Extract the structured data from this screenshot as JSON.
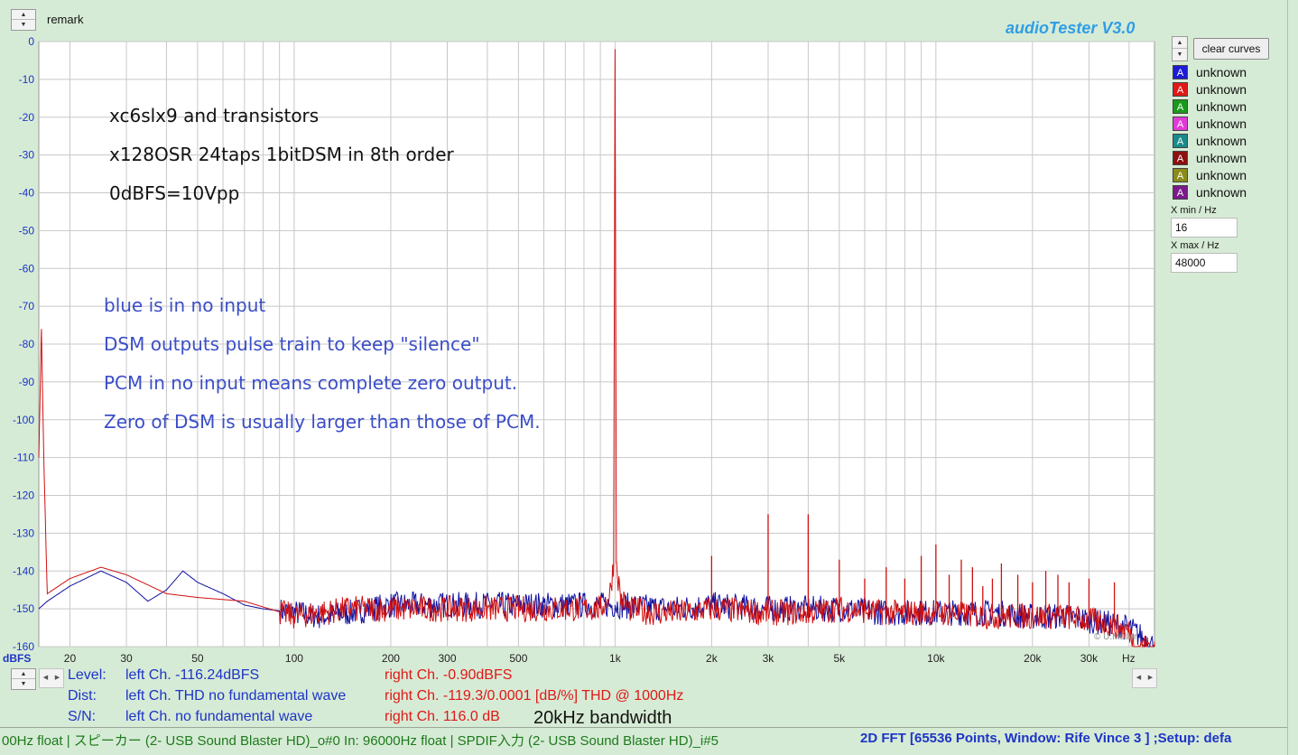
{
  "app": {
    "title": "audioTester  V3.0",
    "remark_label": "remark",
    "copyright": "© U.Müller"
  },
  "controls": {
    "clear_curves": "clear curves",
    "legend": [
      {
        "label": "A",
        "name": "unknown",
        "color": "#1b1bd6"
      },
      {
        "label": "A",
        "name": "unknown",
        "color": "#e01818"
      },
      {
        "label": "A",
        "name": "unknown",
        "color": "#1a9a1a"
      },
      {
        "label": "A",
        "name": "unknown",
        "color": "#e23ad9"
      },
      {
        "label": "A",
        "name": "unknown",
        "color": "#1b8a8a"
      },
      {
        "label": "A",
        "name": "unknown",
        "color": "#8b1010"
      },
      {
        "label": "A",
        "name": "unknown",
        "color": "#8b8b1a"
      },
      {
        "label": "A",
        "name": "unknown",
        "color": "#7b1a8b"
      }
    ],
    "xmin_label": "X min / Hz",
    "xmin_value": "16",
    "xmax_label": "X max / Hz",
    "xmax_value": "48000"
  },
  "stats": {
    "level_label": "Level:",
    "level_left": "left Ch. -116.24dBFS",
    "level_right": "right Ch. -0.90dBFS",
    "dist_label": "Dist:",
    "dist_left": "left Ch. THD no fundamental wave",
    "dist_right": "right Ch. -119.3/0.0001 [dB/%] THD @ 1000Hz",
    "sn_label": "S/N:",
    "sn_left": "left Ch.  no fundamental wave",
    "sn_right": "right Ch. 116.0 dB",
    "bandwidth": "20kHz bandwidth"
  },
  "statusbar": {
    "left": "00Hz float  | スピーカー (2- USB Sound Blaster HD)_o#0  In: 96000Hz float  | SPDIF入力 (2- USB Sound Blaster HD)_i#5",
    "right": "2D FFT [65536 Points, Window: Rife Vince 3 ]  ;Setup:  defa"
  },
  "chart_data": {
    "type": "line",
    "title": "",
    "xlabel": "Hz",
    "ylabel": "dBFS",
    "xscale": "log",
    "xlim": [
      16,
      48000
    ],
    "ylim": [
      -160,
      0
    ],
    "grid": true,
    "y_ticks": [
      "0",
      "-10",
      "-20",
      "-30",
      "-40",
      "-50",
      "-60",
      "-70",
      "-80",
      "-90",
      "-100",
      "-110",
      "-120",
      "-130",
      "-140",
      "-150",
      "-160"
    ],
    "x_ticks": [
      {
        "value": 20,
        "label": "20"
      },
      {
        "value": 30,
        "label": "30"
      },
      {
        "value": 50,
        "label": "50"
      },
      {
        "value": 100,
        "label": "100"
      },
      {
        "value": 200,
        "label": "200"
      },
      {
        "value": 300,
        "label": "300"
      },
      {
        "value": 500,
        "label": "500"
      },
      {
        "value": 1000,
        "label": "1k"
      },
      {
        "value": 2000,
        "label": "2k"
      },
      {
        "value": 3000,
        "label": "3k"
      },
      {
        "value": 5000,
        "label": "5k"
      },
      {
        "value": 10000,
        "label": "10k"
      },
      {
        "value": 20000,
        "label": "20k"
      },
      {
        "value": 30000,
        "label": "30k"
      }
    ],
    "annotations_black": [
      "xc6slx9 and transistors",
      "x128OSR 24taps 1bitDSM in 8th order",
      "0dBFS=10Vpp"
    ],
    "annotations_blue": [
      "blue is in no input",
      "DSM outputs pulse train to keep \"silence\"",
      "PCM in no input means complete zero output.",
      "Zero of DSM is usually larger than those of PCM."
    ],
    "series": [
      {
        "color": "#1010a0",
        "x": [
          16,
          17,
          20,
          25,
          30,
          35,
          40,
          45,
          50,
          60,
          70,
          80,
          100,
          120,
          150,
          200,
          300,
          500,
          700,
          1000,
          1500,
          2000,
          3000,
          5000,
          7000,
          10000,
          15000,
          20000,
          25000,
          30000,
          35000,
          40000,
          48000
        ],
        "y": [
          -150,
          -148,
          -144,
          -140,
          -143,
          -148,
          -145,
          -140,
          -143,
          -146,
          -149,
          -150,
          -151,
          -152,
          -151,
          -149,
          -149,
          -149,
          -149,
          -149,
          -150,
          -149,
          -150,
          -150,
          -151,
          -151,
          -151,
          -152,
          -152,
          -153,
          -154,
          -155,
          -160
        ]
      },
      {
        "color": "#d01010",
        "x": [
          16,
          16.3,
          16.6,
          17,
          20,
          25,
          30,
          40,
          50,
          70,
          100,
          150,
          200,
          300,
          500,
          700,
          900,
          960,
          990,
          1000,
          1010,
          1040,
          1100,
          1300,
          1700,
          2000,
          3000,
          4000,
          5000,
          7000,
          10000,
          15000,
          20000,
          25000,
          30000,
          35000,
          40000,
          42000,
          48000
        ],
        "y": [
          -110,
          -76,
          -112,
          -146,
          -142,
          -139,
          -141,
          -146,
          -147,
          -148,
          -152,
          -150,
          -150,
          -150,
          -150,
          -150,
          -150,
          -147,
          -138,
          -2,
          -138,
          -147,
          -150,
          -151,
          -151,
          -150,
          -151,
          -151,
          -150,
          -151,
          -151,
          -152,
          -152,
          -152,
          -153,
          -154,
          -156,
          -160,
          -160
        ]
      }
    ],
    "spikes": [
      {
        "x": 2000,
        "y": -136
      },
      {
        "x": 3000,
        "y": -125
      },
      {
        "x": 4000,
        "y": -125
      },
      {
        "x": 5000,
        "y": -137
      },
      {
        "x": 6000,
        "y": -142
      },
      {
        "x": 7000,
        "y": -139
      },
      {
        "x": 8000,
        "y": -142
      },
      {
        "x": 9000,
        "y": -136
      },
      {
        "x": 10000,
        "y": -133
      },
      {
        "x": 11000,
        "y": -141
      },
      {
        "x": 12000,
        "y": -137
      },
      {
        "x": 13000,
        "y": -139
      },
      {
        "x": 14000,
        "y": -144
      },
      {
        "x": 15000,
        "y": -142
      },
      {
        "x": 16000,
        "y": -138
      },
      {
        "x": 18000,
        "y": -141
      },
      {
        "x": 20000,
        "y": -143
      },
      {
        "x": 22000,
        "y": -140
      },
      {
        "x": 24000,
        "y": -141
      },
      {
        "x": 26000,
        "y": -143
      },
      {
        "x": 30000,
        "y": -142
      },
      {
        "x": 36000,
        "y": -143
      }
    ]
  }
}
